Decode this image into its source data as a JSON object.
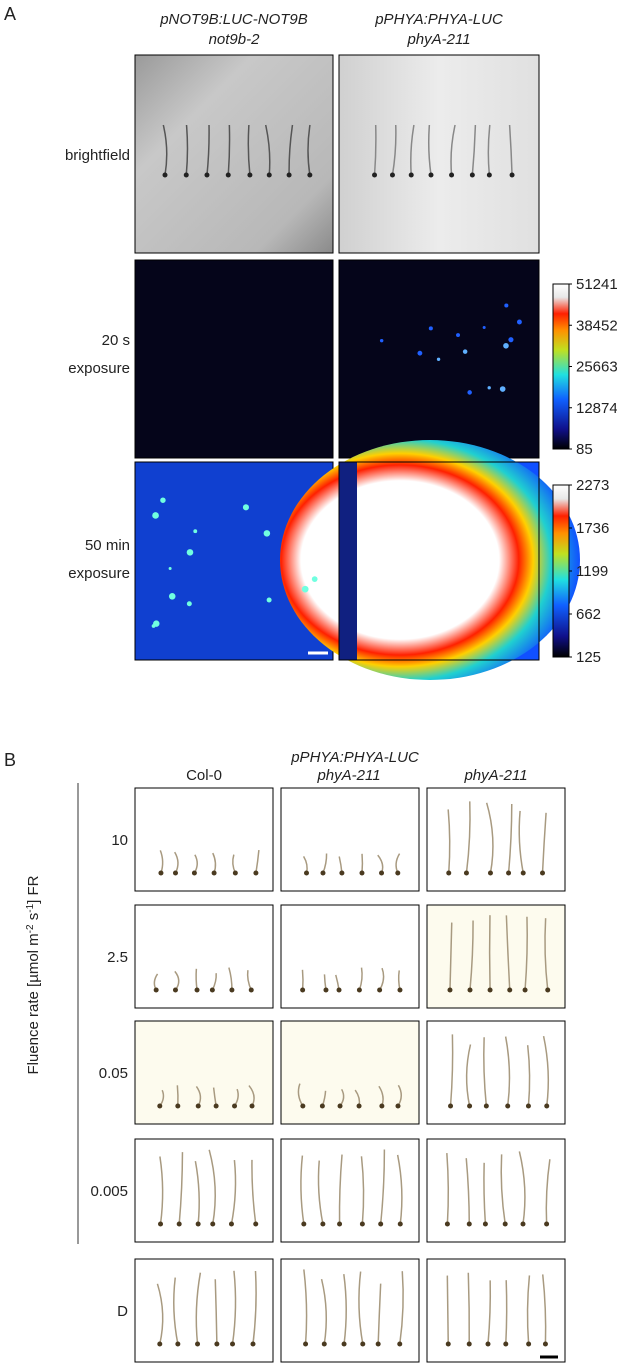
{
  "panel_a": {
    "label": "A",
    "columns": [
      {
        "line1": "pNOT9B:LUC-NOT9B",
        "line2": "not9b-2"
      },
      {
        "line1": "pPHYA:PHYA-LUC",
        "line2": "phyA-211"
      }
    ],
    "rows": [
      {
        "line1": "brightfield"
      },
      {
        "line1": "20 s",
        "line2": "exposure"
      },
      {
        "line1": "50 min",
        "line2": "exposure"
      }
    ],
    "colorbars": [
      {
        "ticks": [
          51241,
          38452,
          25663,
          12874,
          85
        ]
      },
      {
        "ticks": [
          2273,
          1736,
          1199,
          662,
          125
        ]
      }
    ]
  },
  "panel_b": {
    "label": "B",
    "group_header": "pPHYA:PHYA-LUC",
    "columns": [
      "Col-0",
      "phyA-211",
      "phyA-211"
    ],
    "rows": [
      "10",
      "2.5",
      "0.05",
      "0.005",
      "D"
    ],
    "y_axis_label": [
      "Fluence rate [µmol m",
      "-2",
      " s",
      "-1",
      "] FR"
    ]
  }
}
